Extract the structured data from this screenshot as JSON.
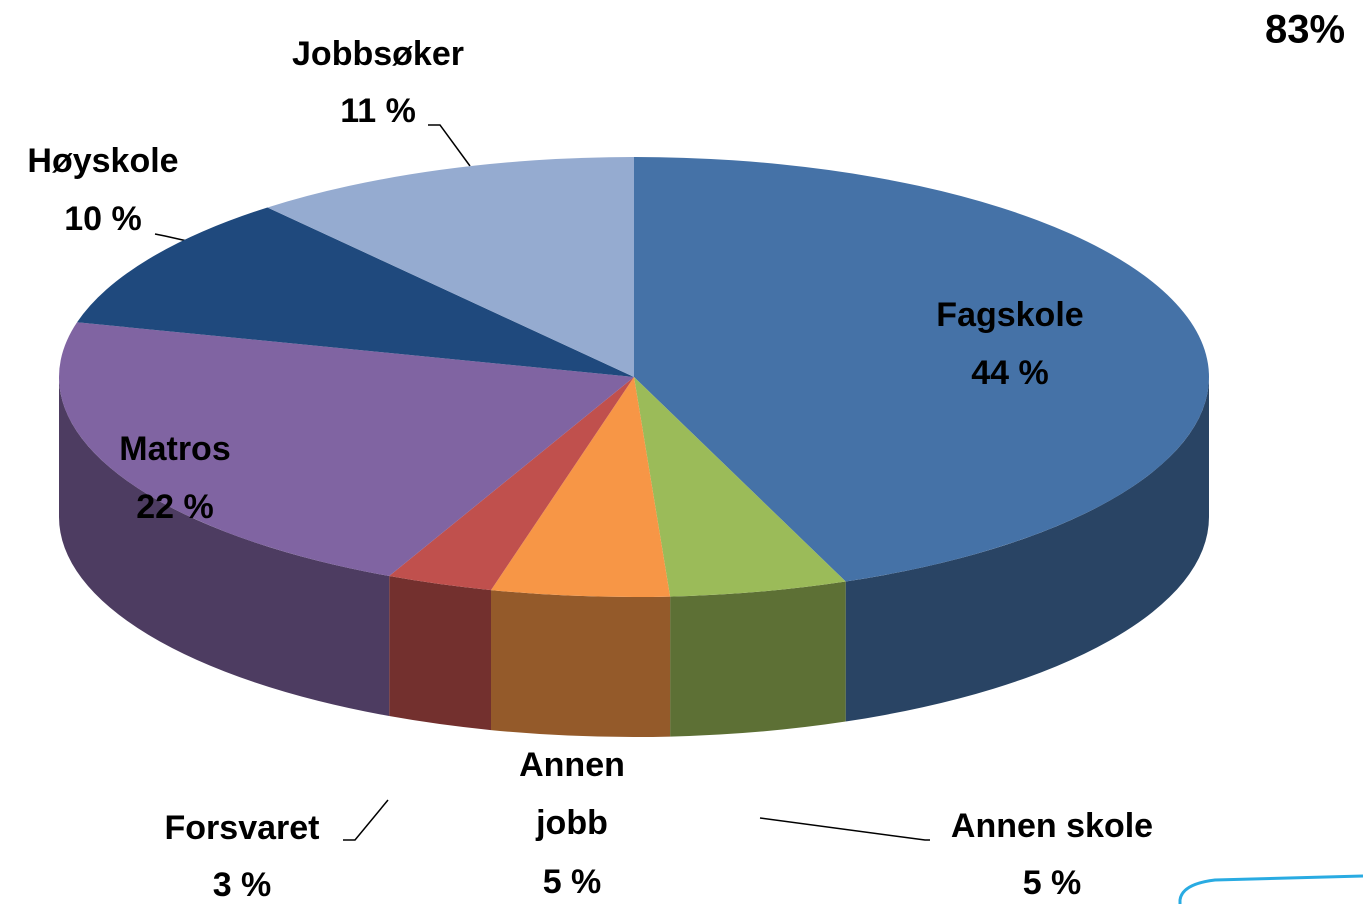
{
  "chart_data": {
    "type": "pie3d",
    "annotation": "83%",
    "categories": [
      "Fagskole",
      "Annen skole",
      "Annen jobb",
      "Forsvaret",
      "Matros",
      "Høyskole",
      "Jobbsøker"
    ],
    "values": [
      44,
      5,
      5,
      3,
      22,
      10,
      11
    ],
    "value_labels": [
      "44 %",
      "5 %",
      "5 %",
      "3 %",
      "22 %",
      "10 %",
      "11 %"
    ],
    "colors": [
      "#4572a7",
      "#9bbb59",
      "#f79646",
      "#c0504d",
      "#8064a2",
      "#1f497d",
      "#95abd0"
    ]
  }
}
